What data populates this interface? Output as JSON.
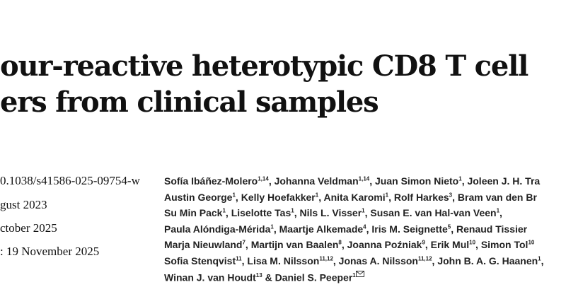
{
  "title": {
    "lines": [
      "our-reactive heterotypic CD8 T cell",
      "ers from clinical samples"
    ]
  },
  "meta": [
    "0.1038/s41586-025-09754-w",
    "gust 2023",
    "ctober 2025",
    ": 19 November 2025"
  ],
  "authors": {
    "lines": [
      [
        {
          "text": "Sofía Ibáñez-Molero",
          "sup": "1,14"
        },
        {
          "text": ", Johanna Veldman",
          "sup": "1,14"
        },
        {
          "text": ", Juan  Simon Nieto",
          "sup": "1"
        },
        {
          "text": ", Joleen J. H. Tra"
        }
      ],
      [
        {
          "text": "Austin George",
          "sup": "1"
        },
        {
          "text": ", Kelly Hoefakker",
          "sup": "1"
        },
        {
          "text": ", Anita Karomi",
          "sup": "1"
        },
        {
          "text": ", Rolf Harkes",
          "sup": "3"
        },
        {
          "text": ", Bram van den Br"
        }
      ],
      [
        {
          "text": "Su Min Pack",
          "sup": "1"
        },
        {
          "text": ", Liselotte Tas",
          "sup": "1"
        },
        {
          "text": ", Nils L. Visser",
          "sup": "1"
        },
        {
          "text": ", Susan E. van Hal-van Veen",
          "sup": "1"
        },
        {
          "text": ","
        }
      ],
      [
        {
          "text": "Paula Alóndiga-Mérida",
          "sup": "1"
        },
        {
          "text": ", Maartje Alkemade",
          "sup": "4"
        },
        {
          "text": ", Iris M. Seignette",
          "sup": "5"
        },
        {
          "text": ", Renaud Tissier"
        }
      ],
      [
        {
          "text": "Marja Nieuwland",
          "sup": "7"
        },
        {
          "text": ", Martijn van Baalen",
          "sup": "8"
        },
        {
          "text": ", Joanna Poźniak",
          "sup": "9"
        },
        {
          "text": ", Erik Mul",
          "sup": "10"
        },
        {
          "text": ", Simon Tol",
          "sup": "10"
        }
      ],
      [
        {
          "text": "Sofia Stenqvist",
          "sup": "11"
        },
        {
          "text": ", Lisa M. Nilsson",
          "sup": "11,12"
        },
        {
          "text": ", Jonas A. Nilsson",
          "sup": "11,12"
        },
        {
          "text": ", John B. A. G. Haanen",
          "sup": "1"
        },
        {
          "text": ","
        }
      ],
      [
        {
          "text": "Winan J. van Houdt",
          "sup": "13"
        },
        {
          "text": " & Daniel S. Peeper",
          "sup": "1"
        }
      ]
    ]
  }
}
